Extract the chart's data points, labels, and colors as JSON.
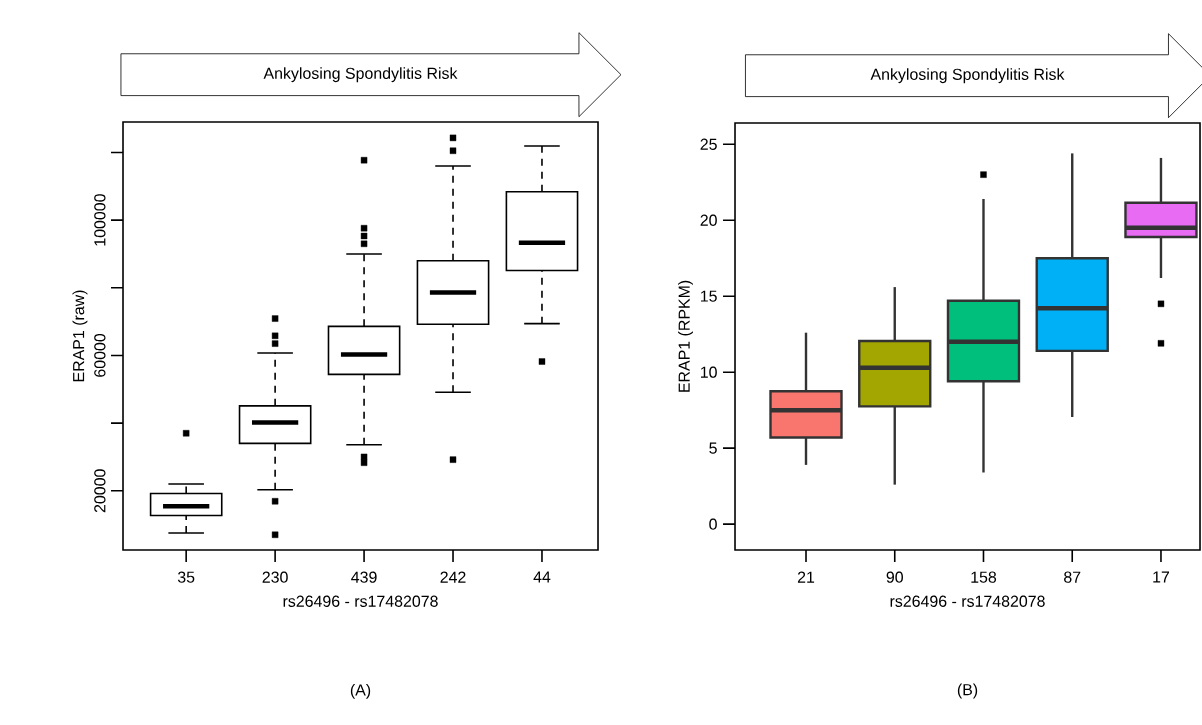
{
  "chart_data": [
    {
      "type": "box",
      "title": "Ankylosing Spondylitis Risk",
      "xlabel": "rs26496 - rs17482078",
      "ylabel": "ERAP1 (raw)",
      "categories": [
        "35",
        "230",
        "439",
        "242",
        "44"
      ],
      "boxes": [
        {
          "low": 7500,
          "q1": 12700,
          "median": 15450,
          "q3": 19200,
          "high": 22000,
          "outliers": [
            37000
          ]
        },
        {
          "low": 20300,
          "q1": 34000,
          "median": 40200,
          "q3": 45100,
          "high": 60700,
          "outliers": [
            70900,
            65800,
            63500,
            16900,
            7000
          ]
        },
        {
          "low": 33600,
          "q1": 54400,
          "median": 60300,
          "q3": 68600,
          "high": 90000,
          "outliers": [
            117700,
            97600,
            95300,
            93000,
            30000,
            28300
          ]
        },
        {
          "low": 49100,
          "q1": 69200,
          "median": 78600,
          "q3": 88000,
          "high": 116000,
          "outliers": [
            124300,
            120500,
            29200
          ]
        },
        {
          "low": 69400,
          "q1": 85100,
          "median": 93300,
          "q3": 108400,
          "high": 121900,
          "outliers": [
            58200
          ]
        }
      ],
      "color": "#ffffff",
      "ylim": [
        2500,
        129000
      ],
      "yticks": [
        20000,
        {
          "value": 40000,
          "label": null
        },
        60000,
        {
          "value": 80000,
          "label": null
        },
        100000,
        {
          "value": 120000,
          "label": null
        }
      ],
      "marker": "square",
      "line_style": "dashed",
      "annotations": [
        "(A)"
      ]
    },
    {
      "type": "box",
      "title": "Ankylosing Spondylitis Risk",
      "xlabel": "rs26496 - rs17482078",
      "ylabel": "ERAP1 (RPKM)",
      "categories": [
        "21",
        "90",
        "158",
        "87",
        "17"
      ],
      "boxes": [
        {
          "low": 3.9,
          "q1": 5.7,
          "median": 7.5,
          "q3": 8.75,
          "high": 12.6
        },
        {
          "low": 2.6,
          "q1": 7.75,
          "median": 10.3,
          "q3": 12.05,
          "high": 15.6
        },
        {
          "low": 3.4,
          "q1": 9.4,
          "median": 12.0,
          "q3": 14.7,
          "high": 21.4,
          "outliers": [
            23.0
          ]
        },
        {
          "low": 7.05,
          "q1": 11.4,
          "median": 14.2,
          "q3": 17.5,
          "high": 24.4
        },
        {
          "low": 16.2,
          "q1": 18.9,
          "median": 19.5,
          "q3": 21.15,
          "high": 24.1,
          "outliers": [
            14.5,
            11.9
          ]
        }
      ],
      "colors": [
        "#f8766d",
        "#a3a500",
        "#00bf7d",
        "#00b0f6",
        "#e76bf3"
      ],
      "ylim": [
        -1.7,
        26.4
      ],
      "yticks": [
        0,
        5,
        10,
        15,
        20,
        25
      ],
      "marker": "square",
      "line_style": "solid",
      "annotations": [
        "(B)"
      ]
    }
  ]
}
